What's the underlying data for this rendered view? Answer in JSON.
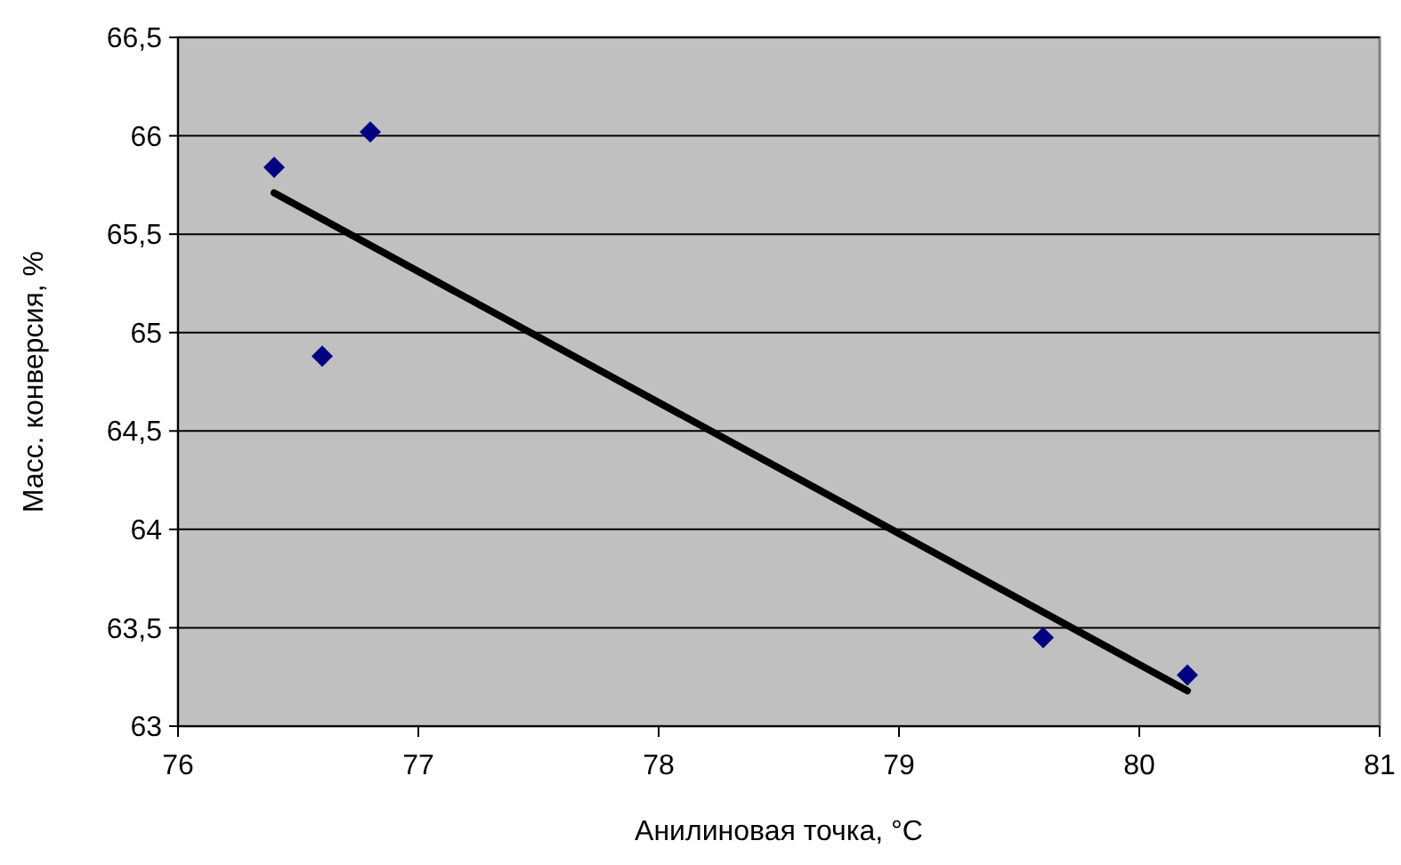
{
  "chart_data": {
    "type": "scatter",
    "xlabel": "Анилиновая точка, °C",
    "ylabel": "Масс. конверсия, %",
    "xlim": [
      76,
      81
    ],
    "xticks": [
      76,
      77,
      78,
      79,
      80,
      81
    ],
    "ylim": [
      63,
      66.5
    ],
    "yticks": [
      63,
      {
        "value": 63.5,
        "label": "63,5"
      },
      64,
      {
        "value": 64.5,
        "label": "64,5"
      },
      65,
      {
        "value": 65.5,
        "label": "65,5"
      },
      66,
      {
        "value": 66.5,
        "label": "66,5"
      }
    ],
    "grid": "y",
    "series": [
      {
        "color": "#000080",
        "marker": "diamond",
        "x": [
          76.4,
          76.8,
          76.6,
          79.6,
          80.2
        ],
        "values": [
          65.84,
          66.02,
          64.88,
          63.45,
          63.26
        ]
      },
      {
        "type": "line",
        "color": "#000000",
        "marker": "none",
        "x": [
          76.4,
          80.2
        ],
        "values": [
          65.71,
          63.18
        ]
      }
    ]
  }
}
